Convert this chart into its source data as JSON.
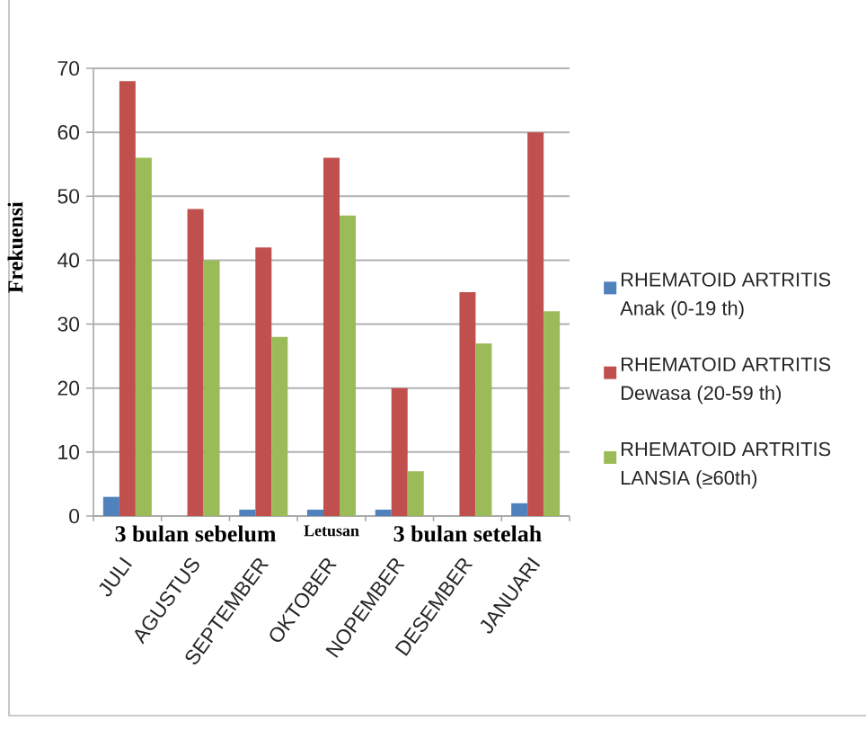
{
  "chart_data": {
    "type": "bar",
    "ylabel": "Frekuensi",
    "categories": [
      "JULI",
      "AGUSTUS",
      "SEPTEMBER",
      "OKTOBER",
      "NOPEMBER",
      "DESEMBER",
      "JANUARI"
    ],
    "series": [
      {
        "name": "RHEMATOID ARTRITIS Anak (0-19 th)",
        "color": "#4f81bd",
        "values": [
          3,
          0,
          1,
          1,
          1,
          0,
          2
        ]
      },
      {
        "name": "RHEMATOID ARTRITIS Dewasa (20-59 th)",
        "color": "#c0504d",
        "values": [
          68,
          48,
          42,
          56,
          20,
          35,
          60
        ]
      },
      {
        "name": "RHEMATOID ARTRITIS LANSIA (≥60th)",
        "color": "#9bbb59",
        "values": [
          56,
          40,
          28,
          47,
          7,
          27,
          32
        ]
      }
    ],
    "ylim": [
      0,
      70
    ],
    "yticks": [
      0,
      10,
      20,
      30,
      40,
      50,
      60,
      70
    ],
    "grid": "y",
    "legend": "right",
    "annotations": [
      "3 bulan sebelum",
      "Letusan",
      "3 bulan setelah"
    ]
  }
}
